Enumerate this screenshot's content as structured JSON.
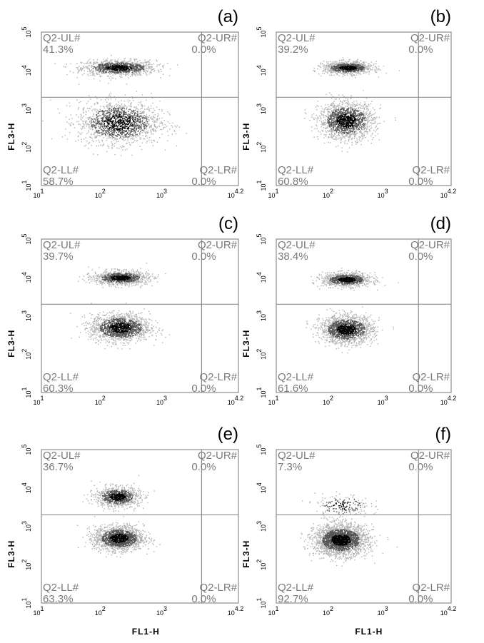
{
  "figure": {
    "x_axis_label": "FL1-H",
    "y_axis_label": "FL3-H",
    "tick_labels": [
      "10",
      "10",
      "10",
      "10"
    ],
    "tick_exponents": [
      "1",
      "2",
      "3",
      "4.2"
    ],
    "y_tick_labels": [
      "10",
      "10",
      "10",
      "10",
      "10"
    ],
    "y_tick_exponents": [
      "1",
      "2",
      "3",
      "4",
      "5"
    ],
    "colors": {
      "frame": "#8c8c8c",
      "dot_dark": "#000000",
      "dot_mid": "#555555",
      "dot_light": "#b0b0b0",
      "label": "#7a7a7a"
    }
  },
  "chart_data": [
    {
      "type": "scatter",
      "panel_label": "(a)",
      "x_scale": "log",
      "xlim": [
        10,
        15849
      ],
      "y_scale": "log",
      "ylim": [
        10,
        100000
      ],
      "gate": {
        "x": 4000,
        "y": 2000
      },
      "quadrants": {
        "UL": {
          "name": "Q2-UL#",
          "percent": "41.3%"
        },
        "UR": {
          "name": "Q2-UR#",
          "percent": "0.0%"
        },
        "LL": {
          "name": "Q2-LL#",
          "percent": "58.7%"
        },
        "LR": {
          "name": "Q2-LR#",
          "percent": "0.0%"
        }
      },
      "populations": [
        {
          "center_x": 180,
          "center_y": 12000,
          "spread_x": 0.3,
          "spread_y": 0.1,
          "fraction": 0.413
        },
        {
          "center_x": 180,
          "center_y": 450,
          "spread_x": 0.33,
          "spread_y": 0.28,
          "fraction": 0.587
        }
      ],
      "grid": false
    },
    {
      "type": "scatter",
      "panel_label": "(b)",
      "x_scale": "log",
      "xlim": [
        10,
        15849
      ],
      "y_scale": "log",
      "ylim": [
        10,
        100000
      ],
      "gate": {
        "x": 4000,
        "y": 2000
      },
      "quadrants": {
        "UL": {
          "name": "Q2-UL#",
          "percent": "39.2%"
        },
        "UR": {
          "name": "Q2-UR#",
          "percent": "0.0%"
        },
        "LL": {
          "name": "Q2-LL#",
          "percent": "60.8%"
        },
        "LR": {
          "name": "Q2-LR#",
          "percent": "0.0%"
        }
      },
      "populations": [
        {
          "center_x": 200,
          "center_y": 12000,
          "spread_x": 0.22,
          "spread_y": 0.08,
          "fraction": 0.392
        },
        {
          "center_x": 190,
          "center_y": 500,
          "spread_x": 0.25,
          "spread_y": 0.24,
          "fraction": 0.608
        }
      ],
      "grid": false
    },
    {
      "type": "scatter",
      "panel_label": "(c)",
      "x_scale": "log",
      "xlim": [
        10,
        15849
      ],
      "y_scale": "log",
      "ylim": [
        10,
        100000
      ],
      "gate": {
        "x": 4000,
        "y": 2000
      },
      "quadrants": {
        "UL": {
          "name": "Q2-UL#",
          "percent": "39.7%"
        },
        "UR": {
          "name": "Q2-UR#",
          "percent": "0.0%"
        },
        "LL": {
          "name": "Q2-LL#",
          "percent": "60.3%"
        },
        "LR": {
          "name": "Q2-LR#",
          "percent": "0.0%"
        }
      },
      "populations": [
        {
          "center_x": 190,
          "center_y": 10000,
          "spread_x": 0.22,
          "spread_y": 0.09,
          "fraction": 0.397
        },
        {
          "center_x": 190,
          "center_y": 500,
          "spread_x": 0.24,
          "spread_y": 0.18,
          "fraction": 0.603
        }
      ],
      "grid": false
    },
    {
      "type": "scatter",
      "panel_label": "(d)",
      "x_scale": "log",
      "xlim": [
        10,
        15849
      ],
      "y_scale": "log",
      "ylim": [
        10,
        100000
      ],
      "gate": {
        "x": 4000,
        "y": 2000
      },
      "quadrants": {
        "UL": {
          "name": "Q2-UL#",
          "percent": "38.4%"
        },
        "UR": {
          "name": "Q2-UR#",
          "percent": "0.0%"
        },
        "LL": {
          "name": "Q2-LL#",
          "percent": "61.6%"
        },
        "LR": {
          "name": "Q2-LR#",
          "percent": "0.0%"
        }
      },
      "populations": [
        {
          "center_x": 190,
          "center_y": 9000,
          "spread_x": 0.22,
          "spread_y": 0.09,
          "fraction": 0.384
        },
        {
          "center_x": 190,
          "center_y": 450,
          "spread_x": 0.24,
          "spread_y": 0.18,
          "fraction": 0.616
        }
      ],
      "grid": false
    },
    {
      "type": "scatter",
      "panel_label": "(e)",
      "x_scale": "log",
      "xlim": [
        10,
        15849
      ],
      "y_scale": "log",
      "ylim": [
        10,
        100000
      ],
      "gate": {
        "x": 4000,
        "y": 2000
      },
      "quadrants": {
        "UL": {
          "name": "Q2-UL#",
          "percent": "36.7%"
        },
        "UR": {
          "name": "Q2-UR#",
          "percent": "0.0%"
        },
        "LL": {
          "name": "Q2-LL#",
          "percent": "63.3%"
        },
        "LR": {
          "name": "Q2-LR#",
          "percent": "0.0%"
        }
      },
      "populations": [
        {
          "center_x": 170,
          "center_y": 6000,
          "spread_x": 0.18,
          "spread_y": 0.13,
          "fraction": 0.367
        },
        {
          "center_x": 180,
          "center_y": 500,
          "spread_x": 0.2,
          "spread_y": 0.16,
          "fraction": 0.633
        }
      ],
      "grid": false
    },
    {
      "type": "scatter",
      "panel_label": "(f)",
      "x_scale": "log",
      "xlim": [
        10,
        15849
      ],
      "y_scale": "log",
      "ylim": [
        10,
        100000
      ],
      "gate": {
        "x": 4000,
        "y": 2000
      },
      "quadrants": {
        "UL": {
          "name": "Q2-UL#",
          "percent": "7.3%"
        },
        "UR": {
          "name": "Q2-UR#",
          "percent": "0.0%"
        },
        "LL": {
          "name": "Q2-LL#",
          "percent": "92.7%"
        },
        "LR": {
          "name": "Q2-LR#",
          "percent": "0.0%"
        }
      },
      "populations": [
        {
          "center_x": 160,
          "center_y": 3500,
          "spread_x": 0.25,
          "spread_y": 0.15,
          "fraction": 0.073
        },
        {
          "center_x": 150,
          "center_y": 450,
          "spread_x": 0.24,
          "spread_y": 0.2,
          "fraction": 0.927
        }
      ],
      "grid": false
    }
  ]
}
